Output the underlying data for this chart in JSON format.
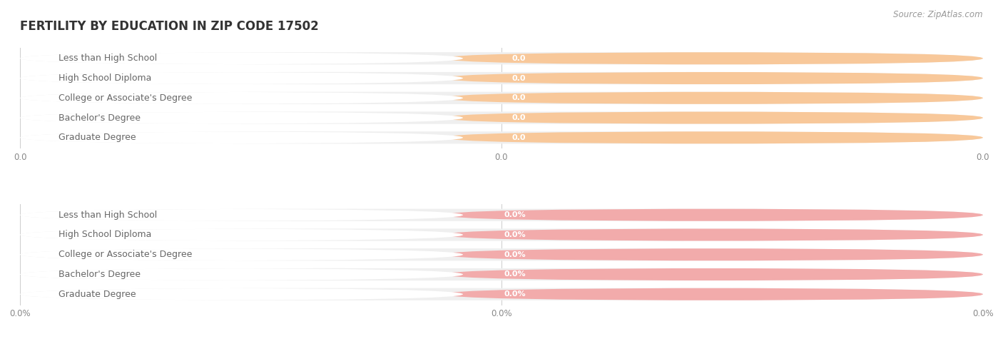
{
  "title": "FERTILITY BY EDUCATION IN ZIP CODE 17502",
  "source": "Source: ZipAtlas.com",
  "categories": [
    "Less than High School",
    "High School Diploma",
    "College or Associate's Degree",
    "Bachelor's Degree",
    "Graduate Degree"
  ],
  "values_top": [
    0.0,
    0.0,
    0.0,
    0.0,
    0.0
  ],
  "values_bottom": [
    0.0,
    0.0,
    0.0,
    0.0,
    0.0
  ],
  "bar_color_top": "#F8C89A",
  "bar_bg_color_top": "#EFEFEF",
  "bar_color_bottom": "#F2ABAB",
  "bar_bg_color_bottom": "#EFEFEF",
  "text_color_top": "#666666",
  "text_color_bottom": "#666666",
  "value_label_top": [
    "0.0",
    "0.0",
    "0.0",
    "0.0",
    "0.0"
  ],
  "value_label_bottom": [
    "0.0%",
    "0.0%",
    "0.0%",
    "0.0%",
    "0.0%"
  ],
  "xtick_top": [
    "0.0",
    "0.0",
    "0.0"
  ],
  "xtick_bottom": [
    "0.0%",
    "0.0%",
    "0.0%"
  ],
  "title_fontsize": 12,
  "source_fontsize": 8.5,
  "tick_fontsize": 8.5,
  "bar_label_fontsize": 8,
  "category_fontsize": 9,
  "background_color": "#FFFFFF",
  "fig_width": 14.06,
  "fig_height": 4.75,
  "white_portion": 0.46,
  "colored_portion": 0.54
}
